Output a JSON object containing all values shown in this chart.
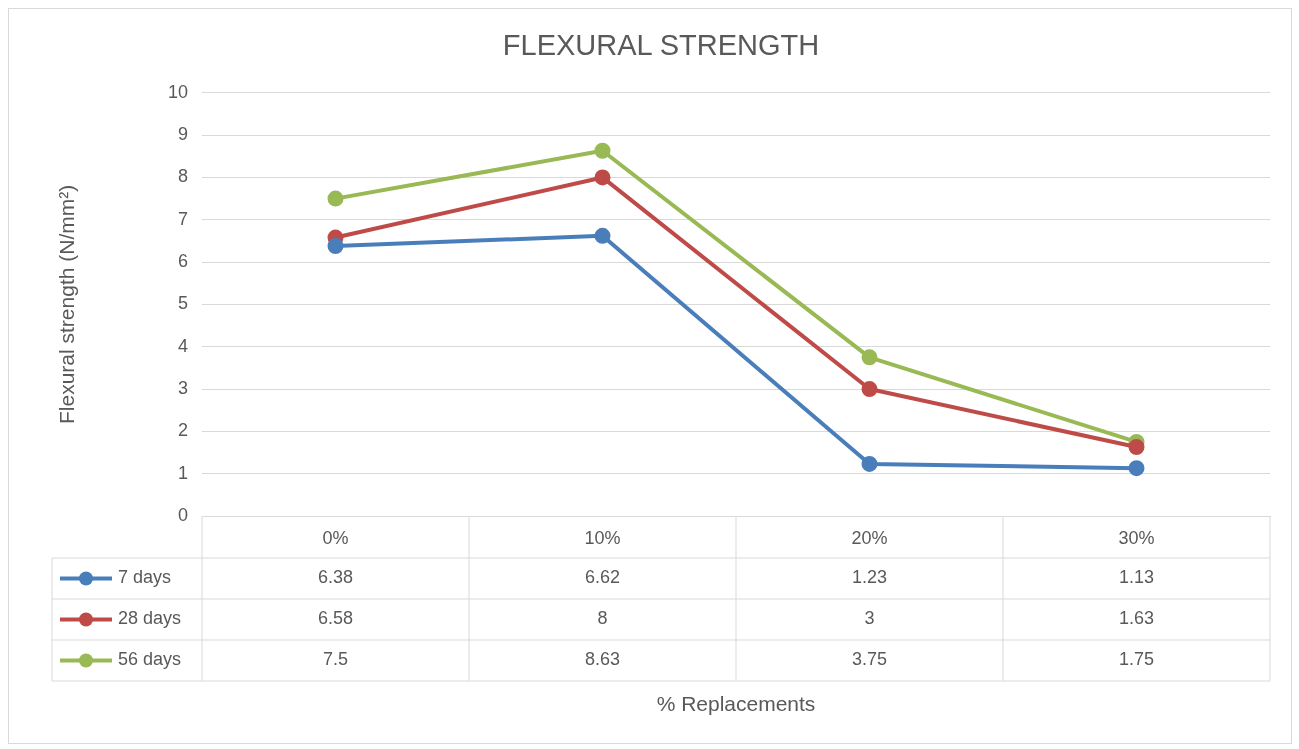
{
  "chart_data": {
    "type": "line",
    "title": "FLEXURAL STRENGTH",
    "annotations": [
      "% Replacements"
    ],
    "ylabel": "Flexural strength (N/mm²)",
    "categories": [
      "0%",
      "10%",
      "20%",
      "30%"
    ],
    "series": [
      {
        "name": "7 days",
        "color": "#4a7ebb",
        "values": [
          6.38,
          6.62,
          1.23,
          1.13
        ]
      },
      {
        "name": "28 days",
        "color": "#be4b48",
        "values": [
          6.58,
          8,
          3,
          1.63
        ]
      },
      {
        "name": "56 days",
        "color": "#98b954",
        "values": [
          7.5,
          8.63,
          3.75,
          1.75
        ]
      }
    ],
    "ylim": [
      0,
      10
    ],
    "yticks": [
      0,
      1,
      2,
      3,
      4,
      5,
      6,
      7,
      8,
      9,
      10
    ],
    "grid": "y",
    "legend": "bottom",
    "marker": "circle",
    "line_style": "solid",
    "data_labels": true
  }
}
